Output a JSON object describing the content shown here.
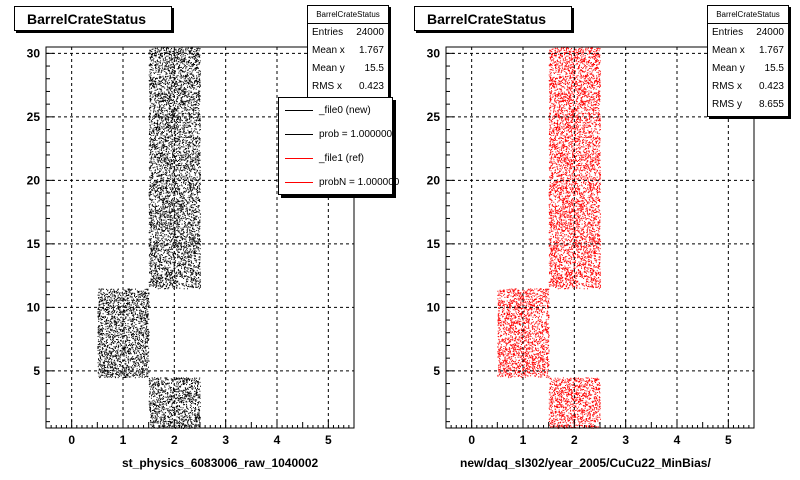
{
  "chart_data": [
    {
      "type": "heatmap",
      "title": "BarrelCrateStatus",
      "xlabel": "st_physics_6083006_raw_1040002",
      "ylabel": "",
      "xlim": [
        -0.5,
        5.5
      ],
      "ylim": [
        0.5,
        30.5
      ],
      "xticks": [
        0,
        1,
        2,
        3,
        4,
        5
      ],
      "yticks": [
        5,
        10,
        15,
        20,
        25,
        30
      ],
      "grid": true,
      "marker_color": "#000000",
      "filled_regions": [
        {
          "x": [
            1.5,
            2.5
          ],
          "y": [
            0.5,
            4.5
          ]
        },
        {
          "x": [
            0.5,
            1.5
          ],
          "y": [
            4.5,
            11.5
          ]
        },
        {
          "x": [
            1.5,
            2.5
          ],
          "y": [
            11.5,
            30.5
          ]
        }
      ],
      "stats": {
        "title": "BarrelCrateStatus",
        "rows": [
          {
            "label": "Entries",
            "value": "24000"
          },
          {
            "label": "Mean x",
            "value": "1.767"
          },
          {
            "label": "Mean y",
            "value": "15.5"
          },
          {
            "label": "RMS x",
            "value": "0.423"
          }
        ]
      },
      "legend": {
        "placement": "right",
        "entries": [
          {
            "label": "_file0 (new)",
            "color": "#000000"
          },
          {
            "label": "prob = 1.000000",
            "color": "#000000"
          },
          {
            "label": "_file1 (ref)",
            "color": "#ff0000"
          },
          {
            "label": "probN = 1.000000",
            "color": "#ff0000"
          }
        ]
      }
    },
    {
      "type": "heatmap",
      "title": "BarrelCrateStatus",
      "xlabel": "new/daq_sl302/year_2005/CuCu22_MinBias/",
      "ylabel": "",
      "xlim": [
        -0.5,
        5.5
      ],
      "ylim": [
        0.5,
        30.5
      ],
      "xticks": [
        0,
        1,
        2,
        3,
        4,
        5
      ],
      "yticks": [
        5,
        10,
        15,
        20,
        25,
        30
      ],
      "grid": true,
      "marker_color": "#ff0000",
      "filled_regions": [
        {
          "x": [
            1.5,
            2.5
          ],
          "y": [
            0.5,
            4.5
          ]
        },
        {
          "x": [
            0.5,
            1.5
          ],
          "y": [
            4.5,
            11.5
          ]
        },
        {
          "x": [
            1.5,
            2.5
          ],
          "y": [
            11.5,
            30.5
          ]
        }
      ],
      "stats": {
        "title": "BarrelCrateStatus",
        "rows": [
          {
            "label": "Entries",
            "value": "24000"
          },
          {
            "label": "Mean x",
            "value": "1.767"
          },
          {
            "label": "Mean y",
            "value": "15.5"
          },
          {
            "label": "RMS x",
            "value": "0.423"
          },
          {
            "label": "RMS y",
            "value": "8.655"
          }
        ]
      }
    }
  ]
}
